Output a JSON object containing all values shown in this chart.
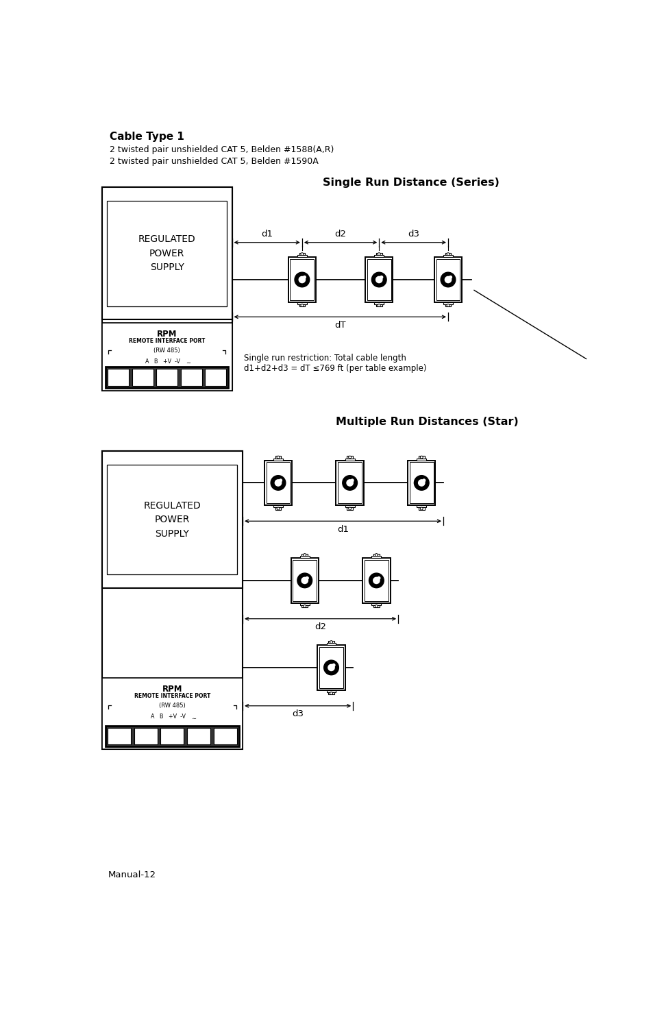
{
  "bg_color": "#ffffff",
  "title_text": "Cable Type 1",
  "subtitle1": "2 twisted pair unshielded CAT 5, Belden #1588(A,R)",
  "subtitle2": "2 twisted pair unshielded CAT 5, Belden #1590A",
  "series_title": "Single Run Distance (Series)",
  "star_title": "Multiple Run Distances (Star)",
  "restriction_text": "Single run restriction: Total cable length\nd1+d2+d3 = dT ≤769 ft (per table example)",
  "footer": "Manual-12",
  "rpm_label": "RPM",
  "rpm_sub": "REMOTE INTERFACE PORT",
  "rpm_rw": "(RW 485)",
  "rpm_pins": "A   B   +V  -V",
  "regulated_text": "REGULATED\nPOWER\nSUPPLY"
}
